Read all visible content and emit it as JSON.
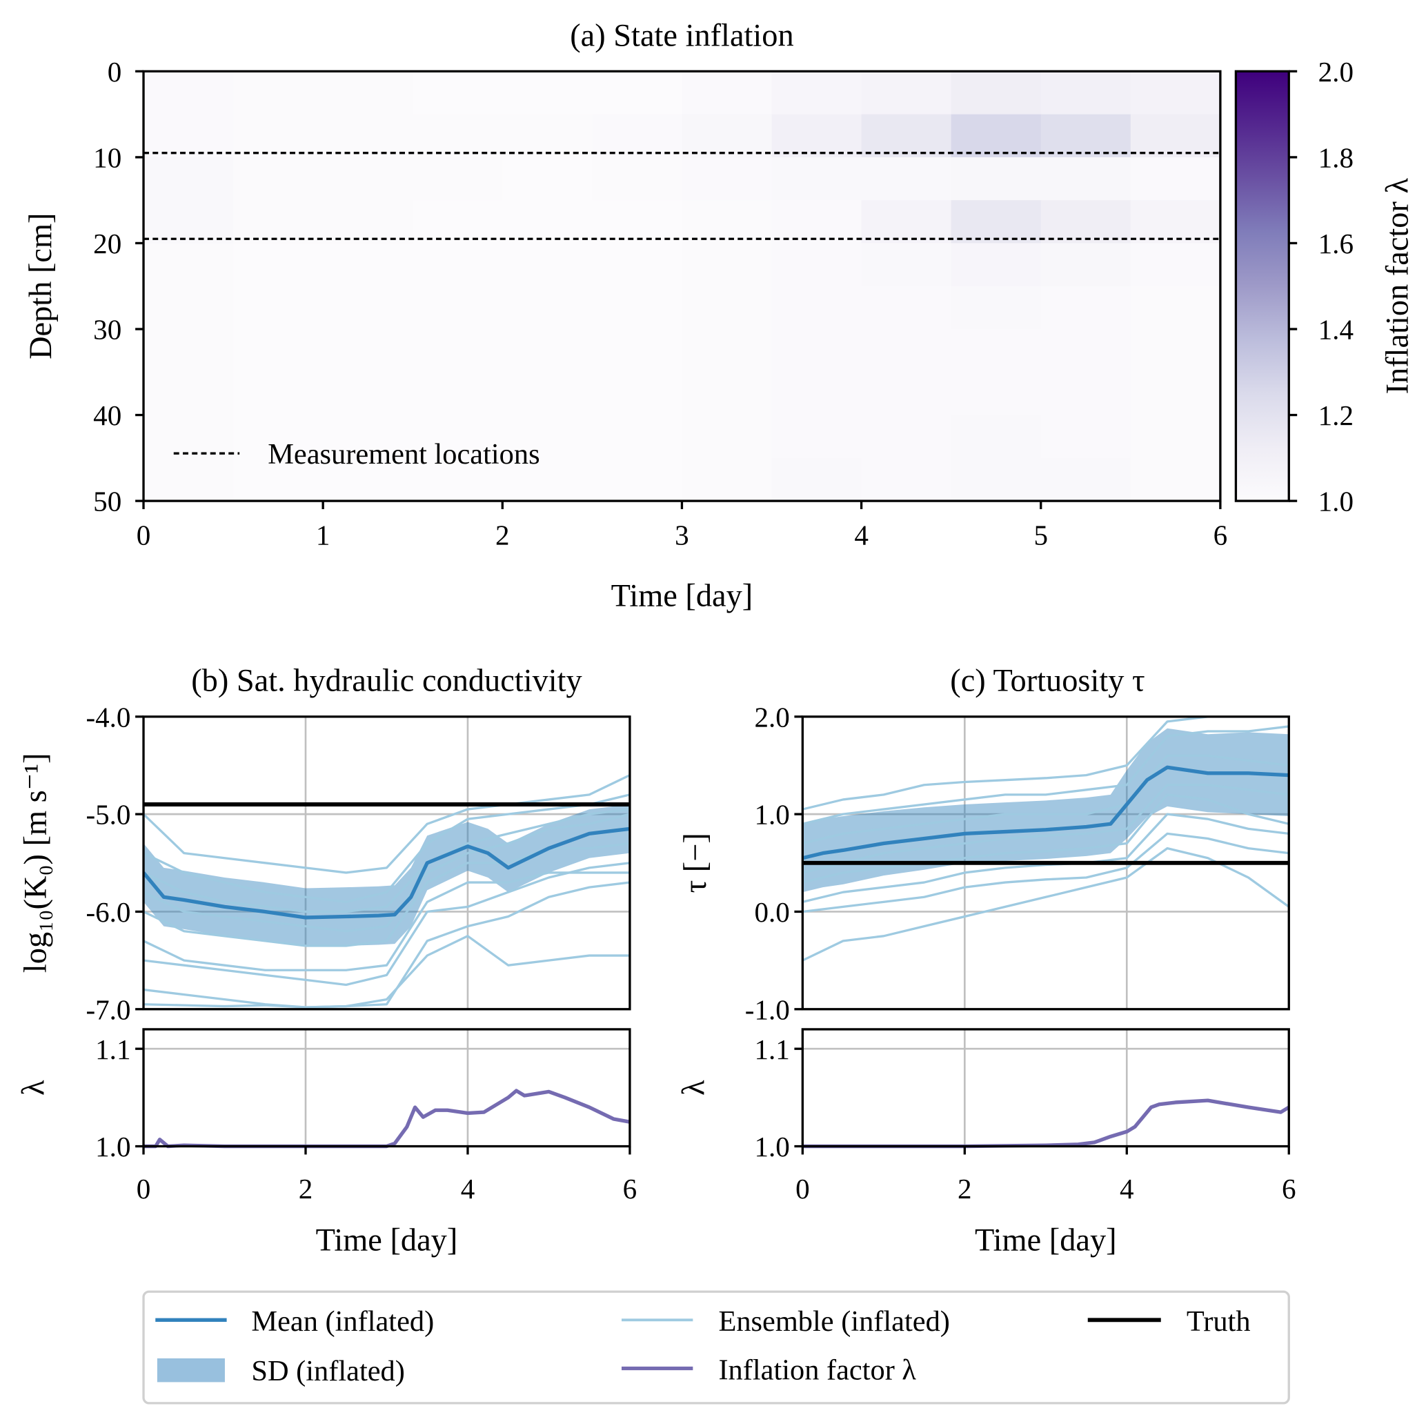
{
  "colors": {
    "mean": "#3182bd",
    "ensemble": "#9ecae1",
    "sd": "#3182bd",
    "truth": "#000000",
    "lambda": "#756bb1",
    "grid": "#c0c0c0"
  },
  "chart_data": [
    {
      "id": "a",
      "type": "heatmap",
      "title": "(a) State inflation",
      "xlabel": "Time [day]",
      "ylabel": "Depth [cm]",
      "xlim": [
        0,
        6
      ],
      "ylim": [
        0,
        50
      ],
      "xticks": [
        "0",
        "1",
        "2",
        "3",
        "4",
        "5",
        "6"
      ],
      "yticks": [
        "0",
        "10",
        "20",
        "30",
        "40",
        "50"
      ],
      "time_bins_day": [
        0,
        0.5,
        1,
        1.5,
        2,
        2.5,
        3,
        3.5,
        4,
        4.5,
        5,
        5.5,
        6
      ],
      "depth_bins_cm": [
        0,
        5,
        10,
        15,
        20,
        25,
        30,
        35,
        40,
        45,
        50
      ],
      "values": [
        [
          1.02,
          1.01,
          1.01,
          1.0,
          1.0,
          1.0,
          1.02,
          1.05,
          1.07,
          1.12,
          1.1,
          1.08
        ],
        [
          1.02,
          1.01,
          1.01,
          1.01,
          1.01,
          1.02,
          1.04,
          1.1,
          1.16,
          1.26,
          1.22,
          1.12
        ],
        [
          1.03,
          1.01,
          1.01,
          1.01,
          1.0,
          1.01,
          1.02,
          1.03,
          1.03,
          1.04,
          1.04,
          1.02
        ],
        [
          1.03,
          1.01,
          1.01,
          1.0,
          1.0,
          1.0,
          1.01,
          1.02,
          1.07,
          1.16,
          1.12,
          1.06
        ],
        [
          1.01,
          1.0,
          1.0,
          1.0,
          1.0,
          1.0,
          1.01,
          1.02,
          1.03,
          1.05,
          1.04,
          1.02
        ],
        [
          1.01,
          1.0,
          1.0,
          1.0,
          1.0,
          1.0,
          1.01,
          1.02,
          1.02,
          1.03,
          1.02,
          1.01
        ],
        [
          1.01,
          1.0,
          1.0,
          1.0,
          1.0,
          1.0,
          1.01,
          1.02,
          1.02,
          1.02,
          1.02,
          1.01
        ],
        [
          1.01,
          1.0,
          1.0,
          1.0,
          1.0,
          1.0,
          1.01,
          1.02,
          1.02,
          1.02,
          1.02,
          1.01
        ],
        [
          1.01,
          1.0,
          1.0,
          1.0,
          1.0,
          1.0,
          1.01,
          1.02,
          1.02,
          1.03,
          1.02,
          1.01
        ],
        [
          1.01,
          1.0,
          1.0,
          1.0,
          1.0,
          1.0,
          1.01,
          1.03,
          1.02,
          1.03,
          1.03,
          1.01
        ]
      ],
      "measurement_depths_cm": [
        9.5,
        19.5
      ],
      "legend_label": "Measurement locations",
      "colorbar": {
        "label": "Inflation factor λ",
        "range": [
          1.0,
          2.0
        ],
        "ticks": [
          "1.0",
          "1.2",
          "1.4",
          "1.6",
          "1.8",
          "2.0"
        ],
        "colormap": [
          "#fcfbfd",
          "#efedf5",
          "#dadaeb",
          "#bcbddc",
          "#9e9ac8",
          "#807dba",
          "#6a51a3",
          "#54278f",
          "#3f007d"
        ]
      }
    },
    {
      "id": "b",
      "type": "line",
      "title": "(b) Sat. hydraulic conductivity",
      "ylabel": "log₁₀(K₀) [m s⁻¹]",
      "xlabel": "Time [day]",
      "xlim": [
        0,
        6
      ],
      "ylim": [
        -7,
        -4
      ],
      "yticks": [
        "-7.0",
        "-6.0",
        "-5.0",
        "-4.0"
      ],
      "xticks": [
        "0",
        "2",
        "4",
        "6"
      ],
      "truth": -4.9,
      "mean": {
        "x": [
          0,
          0.25,
          0.5,
          1,
          1.5,
          2,
          2.5,
          2.9,
          3.1,
          3.3,
          3.5,
          4,
          4.25,
          4.5,
          5,
          5.5,
          6
        ],
        "y": [
          -5.6,
          -5.85,
          -5.88,
          -5.95,
          -6.0,
          -6.06,
          -6.05,
          -6.04,
          -6.03,
          -5.85,
          -5.5,
          -5.33,
          -5.4,
          -5.55,
          -5.35,
          -5.2,
          -5.15
        ]
      },
      "sd": [
        0.3,
        0.3,
        0.3,
        0.3,
        0.3,
        0.3,
        0.3,
        0.3,
        0.3,
        0.3,
        0.28,
        0.25,
        0.25,
        0.25,
        0.25,
        0.25,
        0.25
      ],
      "ensemble_x": [
        0,
        0.5,
        1,
        1.5,
        2,
        2.5,
        3,
        3.5,
        4,
        4.5,
        5,
        5.5,
        6
      ],
      "ensemble": [
        [
          -5.0,
          -5.4,
          -5.45,
          -5.5,
          -5.55,
          -5.6,
          -5.55,
          -5.1,
          -4.95,
          -4.9,
          -4.85,
          -4.8,
          -4.6
        ],
        [
          -5.4,
          -5.6,
          -5.7,
          -5.8,
          -5.85,
          -5.9,
          -5.8,
          -5.3,
          -5.05,
          -5.0,
          -4.95,
          -4.9,
          -4.8
        ],
        [
          -5.6,
          -5.8,
          -5.9,
          -5.95,
          -6.0,
          -6.0,
          -5.95,
          -5.5,
          -5.3,
          -5.2,
          -5.1,
          -5.0,
          -4.95
        ],
        [
          -5.8,
          -6.0,
          -6.05,
          -6.1,
          -6.15,
          -6.2,
          -6.15,
          -5.6,
          -5.4,
          -5.3,
          -5.15,
          -5.1,
          -5.0
        ],
        [
          -6.0,
          -6.2,
          -6.25,
          -6.3,
          -6.35,
          -6.35,
          -6.3,
          -5.7,
          -5.5,
          -5.5,
          -5.35,
          -5.35,
          -5.3
        ],
        [
          -6.3,
          -6.5,
          -6.55,
          -6.6,
          -6.6,
          -6.6,
          -6.55,
          -5.9,
          -5.7,
          -5.7,
          -5.6,
          -5.6,
          -5.6
        ],
        [
          -6.5,
          -6.55,
          -6.6,
          -6.65,
          -6.7,
          -6.75,
          -6.65,
          -6.0,
          -5.95,
          -5.8,
          -5.65,
          -5.55,
          -5.5
        ],
        [
          -6.8,
          -6.85,
          -6.9,
          -6.95,
          -6.98,
          -6.97,
          -6.9,
          -6.45,
          -6.25,
          -6.55,
          -6.5,
          -6.45,
          -6.45
        ],
        [
          -6.95,
          -6.96,
          -6.97,
          -6.96,
          -6.98,
          -6.97,
          -6.95,
          -6.3,
          -6.15,
          -6.05,
          -5.85,
          -5.75,
          -5.7
        ]
      ],
      "lambda": {
        "ylim": [
          1.0,
          1.12
        ],
        "yticks": [
          "1.0",
          "1.1"
        ],
        "ylabel": "λ",
        "x": [
          0,
          0.15,
          0.2,
          0.3,
          0.5,
          1,
          2,
          3,
          3.1,
          3.25,
          3.35,
          3.45,
          3.6,
          3.75,
          4,
          4.2,
          4.5,
          4.6,
          4.7,
          5,
          5.2,
          5.5,
          5.8,
          6
        ],
        "y": [
          1.0,
          1.0,
          1.007,
          1.0,
          1.001,
          1.0,
          1.0,
          1.0,
          1.003,
          1.02,
          1.04,
          1.03,
          1.037,
          1.037,
          1.034,
          1.035,
          1.05,
          1.057,
          1.052,
          1.056,
          1.05,
          1.04,
          1.028,
          1.025
        ]
      }
    },
    {
      "id": "c",
      "type": "line",
      "title": "(c) Tortuosity τ",
      "ylabel": "τ [−]",
      "xlabel": "Time [day]",
      "xlim": [
        0,
        6
      ],
      "ylim": [
        -1,
        2
      ],
      "yticks": [
        "-1.0",
        "0.0",
        "1.0",
        "2.0"
      ],
      "xticks": [
        "0",
        "2",
        "4",
        "6"
      ],
      "truth": 0.5,
      "mean": {
        "x": [
          0,
          0.25,
          0.5,
          1,
          1.5,
          2,
          2.5,
          3,
          3.5,
          3.8,
          4,
          4.25,
          4.5,
          4.75,
          5,
          5.5,
          6
        ],
        "y": [
          0.55,
          0.6,
          0.63,
          0.7,
          0.75,
          0.8,
          0.82,
          0.84,
          0.87,
          0.9,
          1.1,
          1.35,
          1.48,
          1.45,
          1.42,
          1.42,
          1.4
        ]
      },
      "sd": [
        0.35,
        0.35,
        0.35,
        0.33,
        0.32,
        0.3,
        0.3,
        0.3,
        0.3,
        0.3,
        0.35,
        0.38,
        0.4,
        0.4,
        0.4,
        0.42,
        0.42
      ],
      "ensemble_x": [
        0,
        0.5,
        1,
        1.5,
        2,
        2.5,
        3,
        3.5,
        4,
        4.5,
        5,
        5.5,
        6
      ],
      "ensemble": [
        [
          1.05,
          1.15,
          1.2,
          1.3,
          1.33,
          1.35,
          1.37,
          1.4,
          1.5,
          1.95,
          2.0,
          2.0,
          2.0
        ],
        [
          0.9,
          1.0,
          1.05,
          1.1,
          1.15,
          1.2,
          1.2,
          1.25,
          1.3,
          1.8,
          1.85,
          1.85,
          1.9
        ],
        [
          0.7,
          0.8,
          0.85,
          0.9,
          0.95,
          1.0,
          1.0,
          1.0,
          1.1,
          1.6,
          1.6,
          1.55,
          1.5
        ],
        [
          0.4,
          0.5,
          0.6,
          0.65,
          0.7,
          0.75,
          0.78,
          0.8,
          0.85,
          1.3,
          1.3,
          1.25,
          1.2
        ],
        [
          0.3,
          0.4,
          0.45,
          0.5,
          0.55,
          0.6,
          0.62,
          0.65,
          0.7,
          1.2,
          1.15,
          1.0,
          0.9
        ],
        [
          0.1,
          0.2,
          0.25,
          0.3,
          0.4,
          0.45,
          0.48,
          0.5,
          0.55,
          1.0,
          0.95,
          0.85,
          0.8
        ],
        [
          0.0,
          0.05,
          0.1,
          0.15,
          0.25,
          0.3,
          0.33,
          0.35,
          0.45,
          0.8,
          0.75,
          0.65,
          0.6
        ],
        [
          -0.5,
          -0.3,
          -0.25,
          -0.15,
          -0.05,
          0.05,
          0.15,
          0.25,
          0.35,
          0.65,
          0.55,
          0.35,
          0.05
        ]
      ],
      "lambda": {
        "ylim": [
          1.0,
          1.12
        ],
        "yticks": [
          "1.0",
          "1.1"
        ],
        "ylabel": "λ",
        "x": [
          0,
          0.5,
          1,
          2,
          3,
          3.4,
          3.6,
          3.8,
          4,
          4.1,
          4.2,
          4.3,
          4.4,
          4.6,
          5,
          5.5,
          5.9,
          6
        ],
        "y": [
          1.0,
          1.0,
          1.0,
          1.0,
          1.001,
          1.002,
          1.004,
          1.01,
          1.015,
          1.02,
          1.03,
          1.04,
          1.043,
          1.045,
          1.047,
          1.04,
          1.035,
          1.04
        ]
      }
    }
  ],
  "legend": {
    "mean": "Mean (inflated)",
    "sd": "SD (inflated)",
    "ensemble": "Ensemble (inflated)",
    "lambda": "Inflation factor λ",
    "truth": "Truth"
  }
}
